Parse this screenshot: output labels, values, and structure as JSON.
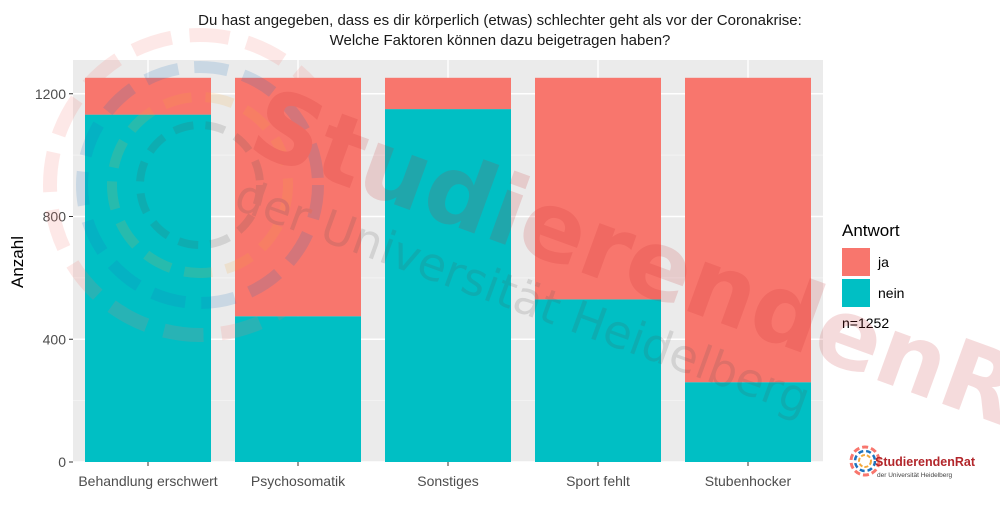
{
  "chart_data": {
    "type": "bar",
    "stacked": true,
    "title": [
      "Du hast angegeben, dass es dir körperlich (etwas) schlechter geht als vor der Coronakrise:",
      "Welche Faktoren können dazu beigetragen haben?"
    ],
    "xlabel": "",
    "ylabel": "Anzahl",
    "ylim": [
      0,
      1310
    ],
    "yticks": [
      0,
      400,
      800,
      1200
    ],
    "grid": true,
    "legend_position": "right",
    "legend_title": "Antwort",
    "legend_note": "n=1252",
    "categories": [
      "Behandlung erschwert",
      "Psychosomatik",
      "Sonstiges",
      "Sport fehlt",
      "Stubenhocker"
    ],
    "series": [
      {
        "name": "nein",
        "color": "#00BFC4",
        "values": [
          1132,
          475,
          1150,
          530,
          260
        ]
      },
      {
        "name": "ja",
        "color": "#F8766D",
        "values": [
          120,
          777,
          102,
          722,
          992
        ]
      }
    ]
  },
  "watermark": {
    "line1": "StudierendenRat",
    "line2": "der Universität Heidelberg"
  },
  "logo": {
    "brand": "StudierendenRat",
    "sub": "der Universität Heidelberg"
  }
}
